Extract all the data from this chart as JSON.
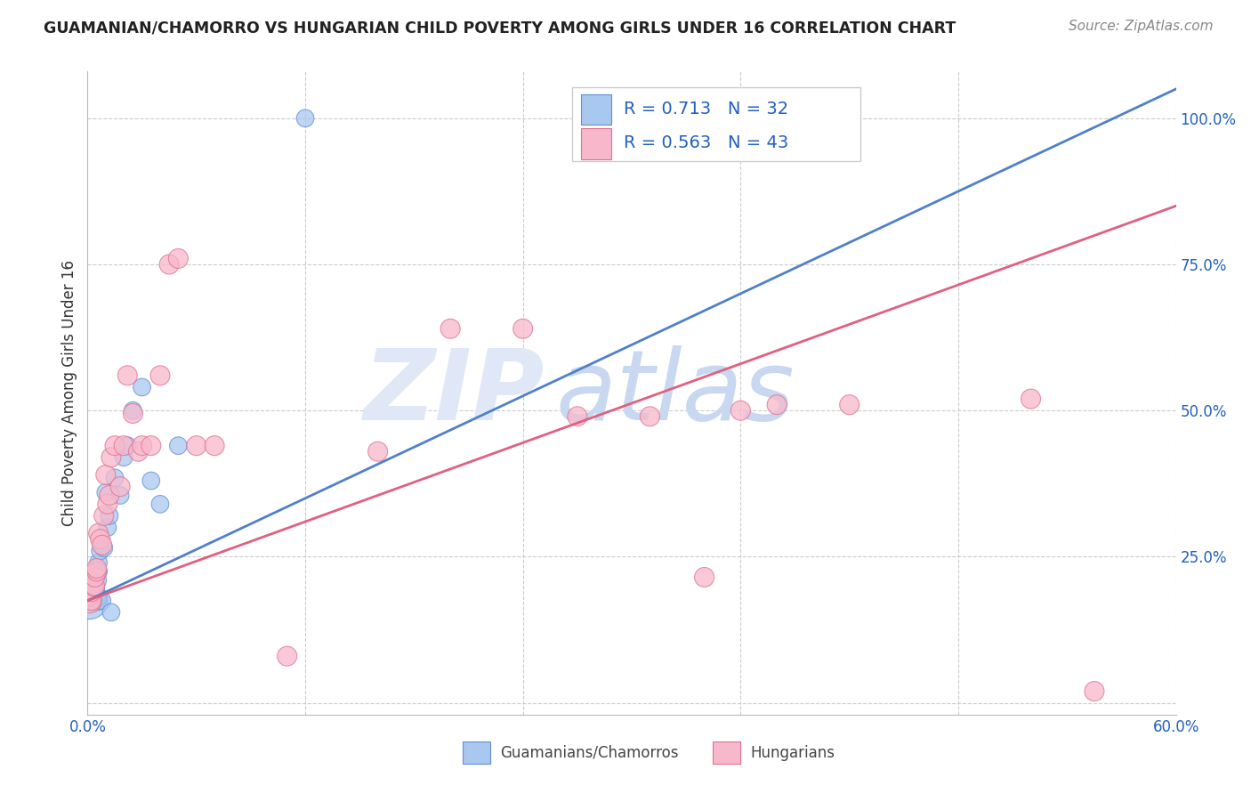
{
  "title": "GUAMANIAN/CHAMORRO VS HUNGARIAN CHILD POVERTY AMONG GIRLS UNDER 16 CORRELATION CHART",
  "source": "Source: ZipAtlas.com",
  "ylabel": "Child Poverty Among Girls Under 16",
  "xlim": [
    0.0,
    0.6
  ],
  "ylim": [
    -0.02,
    1.08
  ],
  "xtick_positions": [
    0.0,
    0.12,
    0.24,
    0.36,
    0.48,
    0.6
  ],
  "xtick_labels": [
    "0.0%",
    "",
    "",
    "",
    "",
    "60.0%"
  ],
  "ytick_positions": [
    0.0,
    0.25,
    0.5,
    0.75,
    1.0
  ],
  "ytick_labels": [
    "",
    "25.0%",
    "50.0%",
    "75.0%",
    "100.0%"
  ],
  "blue_color": "#A8C8F0",
  "pink_color": "#F8B8CC",
  "blue_edge_color": "#6090D0",
  "pink_edge_color": "#E07090",
  "blue_line_color": "#5080C8",
  "pink_line_color": "#E06080",
  "blue_R": 0.713,
  "blue_N": 32,
  "pink_R": 0.563,
  "pink_N": 43,
  "legend_label_blue": "Guamanians/Chamorros",
  "legend_label_pink": "Hungarians",
  "blue_line_x0": 0.0,
  "blue_line_y0": 0.175,
  "blue_line_x1": 0.6,
  "blue_line_y1": 1.05,
  "pink_line_x0": 0.0,
  "pink_line_y0": 0.175,
  "pink_line_x1": 0.6,
  "pink_line_y1": 0.85,
  "blue_scatter_x": [
    0.001,
    0.001,
    0.002,
    0.002,
    0.003,
    0.003,
    0.003,
    0.004,
    0.004,
    0.005,
    0.005,
    0.005,
    0.006,
    0.006,
    0.007,
    0.008,
    0.009,
    0.01,
    0.011,
    0.012,
    0.013,
    0.015,
    0.018,
    0.02,
    0.022,
    0.025,
    0.03,
    0.035,
    0.04,
    0.05,
    0.12,
    0.42
  ],
  "blue_scatter_y": [
    0.175,
    0.185,
    0.18,
    0.19,
    0.175,
    0.185,
    0.2,
    0.175,
    0.195,
    0.175,
    0.18,
    0.21,
    0.225,
    0.24,
    0.26,
    0.175,
    0.265,
    0.36,
    0.3,
    0.32,
    0.155,
    0.385,
    0.355,
    0.42,
    0.44,
    0.5,
    0.54,
    0.38,
    0.34,
    0.44,
    1.0,
    1.0
  ],
  "blue_scatter_sizes": [
    900,
    400,
    300,
    300,
    250,
    250,
    250,
    250,
    250,
    250,
    250,
    250,
    200,
    200,
    200,
    200,
    200,
    200,
    200,
    200,
    200,
    200,
    200,
    200,
    200,
    200,
    200,
    200,
    200,
    200,
    200,
    200
  ],
  "pink_scatter_x": [
    0.001,
    0.001,
    0.002,
    0.002,
    0.003,
    0.003,
    0.004,
    0.004,
    0.005,
    0.005,
    0.006,
    0.007,
    0.008,
    0.009,
    0.01,
    0.011,
    0.012,
    0.013,
    0.015,
    0.018,
    0.02,
    0.022,
    0.025,
    0.028,
    0.03,
    0.035,
    0.04,
    0.045,
    0.05,
    0.06,
    0.07,
    0.11,
    0.16,
    0.2,
    0.24,
    0.27,
    0.31,
    0.34,
    0.36,
    0.38,
    0.42,
    0.52,
    0.555
  ],
  "pink_scatter_y": [
    0.175,
    0.185,
    0.175,
    0.19,
    0.2,
    0.22,
    0.2,
    0.215,
    0.225,
    0.23,
    0.29,
    0.28,
    0.27,
    0.32,
    0.39,
    0.34,
    0.355,
    0.42,
    0.44,
    0.37,
    0.44,
    0.56,
    0.495,
    0.43,
    0.44,
    0.44,
    0.56,
    0.75,
    0.76,
    0.44,
    0.44,
    0.08,
    0.43,
    0.64,
    0.64,
    0.49,
    0.49,
    0.215,
    0.5,
    0.51,
    0.51,
    0.52,
    0.02
  ],
  "pink_scatter_sizes": [
    400,
    300,
    250,
    250,
    250,
    250,
    250,
    250,
    250,
    250,
    250,
    250,
    250,
    250,
    250,
    250,
    250,
    250,
    250,
    250,
    250,
    250,
    250,
    250,
    250,
    250,
    250,
    250,
    250,
    250,
    250,
    250,
    250,
    250,
    250,
    250,
    250,
    250,
    250,
    250,
    250,
    250,
    250
  ],
  "text_blue_color": "#2060C0",
  "text_dark_color": "#333333",
  "grid_color": "#CCCCCC",
  "watermark_zip_color": "#E0E8F8",
  "watermark_atlas_color": "#C8D8F0"
}
